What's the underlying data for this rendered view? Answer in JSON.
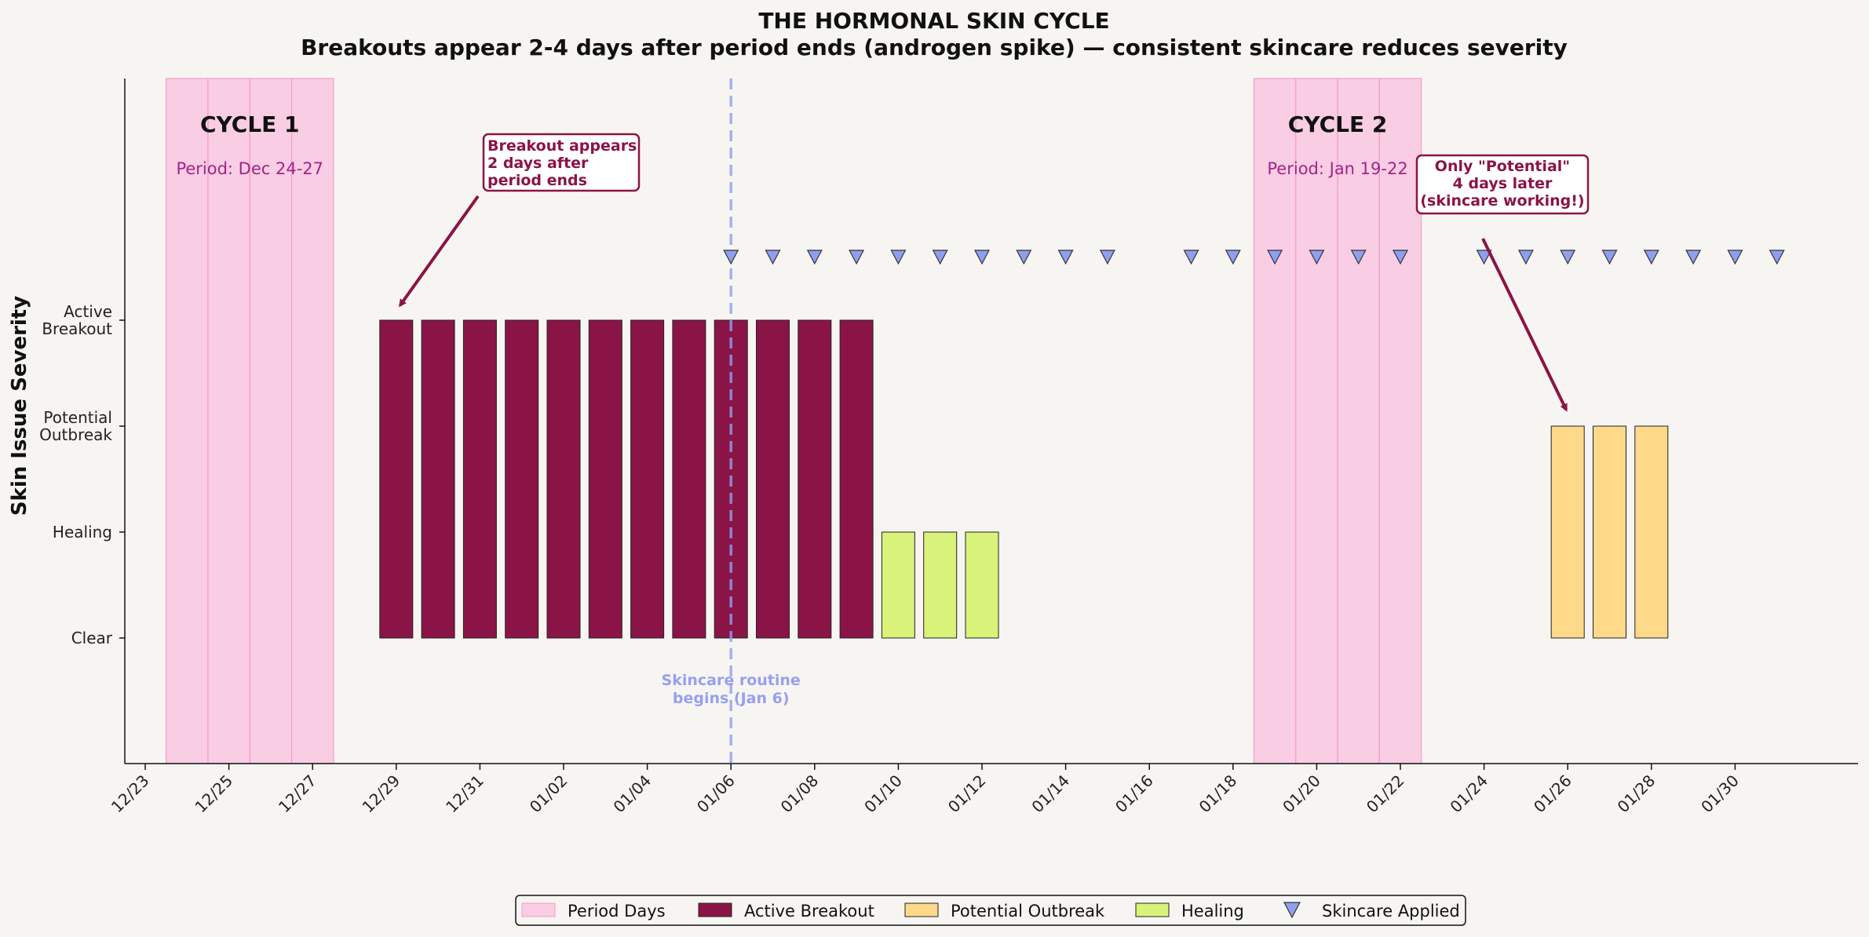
{
  "chart_data": {
    "type": "bar",
    "title": "THE HORMONAL SKIN CYCLE",
    "subtitle": "Breakouts appear 2-4 days after period ends (androgen spike) — consistent skincare reduces severity",
    "ylabel": "Skin Issue Severity",
    "x_start": "12/23",
    "x_end": "02/01",
    "y_levels": [
      "Clear",
      "Healing",
      "Potential\nOutbreak",
      "Active\nBreakout"
    ],
    "x_ticks": [
      "12/23",
      "12/25",
      "12/27",
      "12/29",
      "12/31",
      "01/02",
      "01/04",
      "01/06",
      "01/08",
      "01/10",
      "01/12",
      "01/14",
      "01/16",
      "01/18",
      "01/20",
      "01/22",
      "01/24",
      "01/26",
      "01/28",
      "01/30"
    ],
    "period_days": [
      {
        "cycle": "CYCLE 1",
        "label": "Period: Dec 24-27",
        "days": [
          "12/24",
          "12/25",
          "12/26",
          "12/27"
        ]
      },
      {
        "cycle": "CYCLE 2",
        "label": "Period: Jan 19-22",
        "days": [
          "01/19",
          "01/20",
          "01/21",
          "01/22"
        ]
      }
    ],
    "bars": [
      {
        "date": "12/29",
        "status": "Active Breakout",
        "level": 3
      },
      {
        "date": "12/30",
        "status": "Active Breakout",
        "level": 3
      },
      {
        "date": "12/31",
        "status": "Active Breakout",
        "level": 3
      },
      {
        "date": "01/01",
        "status": "Active Breakout",
        "level": 3
      },
      {
        "date": "01/02",
        "status": "Active Breakout",
        "level": 3
      },
      {
        "date": "01/03",
        "status": "Active Breakout",
        "level": 3
      },
      {
        "date": "01/04",
        "status": "Active Breakout",
        "level": 3
      },
      {
        "date": "01/05",
        "status": "Active Breakout",
        "level": 3
      },
      {
        "date": "01/06",
        "status": "Active Breakout",
        "level": 3
      },
      {
        "date": "01/07",
        "status": "Active Breakout",
        "level": 3
      },
      {
        "date": "01/08",
        "status": "Active Breakout",
        "level": 3
      },
      {
        "date": "01/09",
        "status": "Active Breakout",
        "level": 3
      },
      {
        "date": "01/10",
        "status": "Healing",
        "level": 1
      },
      {
        "date": "01/11",
        "status": "Healing",
        "level": 1
      },
      {
        "date": "01/12",
        "status": "Healing",
        "level": 1
      },
      {
        "date": "01/26",
        "status": "Potential Outbreak",
        "level": 2
      },
      {
        "date": "01/27",
        "status": "Potential Outbreak",
        "level": 2
      },
      {
        "date": "01/28",
        "status": "Potential Outbreak",
        "level": 2
      }
    ],
    "skincare_dates": [
      "01/06",
      "01/07",
      "01/08",
      "01/09",
      "01/10",
      "01/11",
      "01/12",
      "01/13",
      "01/14",
      "01/15",
      "01/17",
      "01/18",
      "01/19",
      "01/20",
      "01/21",
      "01/22",
      "01/24",
      "01/25",
      "01/26",
      "01/27",
      "01/28",
      "01/29",
      "01/30",
      "01/31"
    ],
    "skincare_start": {
      "date": "01/06",
      "label": "Skincare routine\nbegins (Jan 6)"
    },
    "annotations": [
      {
        "text": "Breakout appears\n2 days after\nperiod ends",
        "target": "12/29"
      },
      {
        "text": "Only \"Potential\"\n4 days later\n(skincare working!)",
        "target": "01/26"
      }
    ],
    "legend": {
      "placement": "bottom-center",
      "entries": [
        "Period Days",
        "Active Breakout",
        "Potential Outbreak",
        "Healing",
        "Skincare Applied"
      ]
    },
    "colors": {
      "period": "#f9cde3",
      "period_edge": "#f59ccb",
      "active": "#8b1446",
      "potential": "#ffd98a",
      "healing": "#d8f27a",
      "skincare": "#8f9ff0",
      "annotation": "#8b1446"
    }
  }
}
